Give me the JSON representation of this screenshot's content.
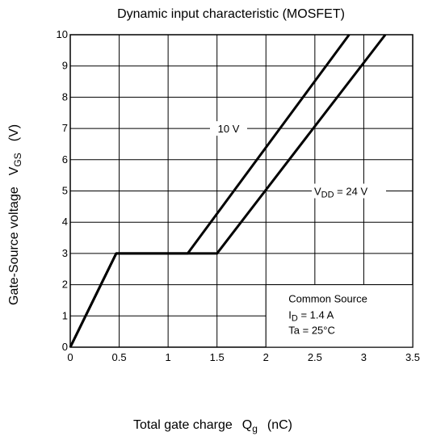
{
  "chart_data": {
    "type": "line",
    "title": "Dynamic input characteristic (MOSFET)",
    "xlabel": "Total gate charge",
    "xlabel_symbol": "Q",
    "xlabel_subscript": "g",
    "xlabel_unit": "(nC)",
    "ylabel": "Gate-Source voltage",
    "ylabel_symbol": "V",
    "ylabel_subscript": "GS",
    "ylabel_unit": "(V)",
    "xlim": [
      0,
      3.5
    ],
    "ylim": [
      0,
      10
    ],
    "x_ticks": [
      0,
      0.5,
      1,
      1.5,
      2,
      2.5,
      3,
      3.5
    ],
    "x_tick_labels": [
      "0",
      "0.5",
      "1",
      "1.5",
      "2",
      "2.5",
      "3",
      "3.5"
    ],
    "y_ticks": [
      0,
      1,
      2,
      3,
      4,
      5,
      6,
      7,
      8,
      9,
      10
    ],
    "y_tick_labels": [
      "0",
      "1",
      "2",
      "3",
      "4",
      "5",
      "6",
      "7",
      "8",
      "9",
      "10"
    ],
    "grid": true,
    "series": [
      {
        "name": "10 V",
        "x": [
          0,
          0.47,
          1.2,
          2.85
        ],
        "y": [
          0,
          3.0,
          3.0,
          10.0
        ]
      },
      {
        "name": "VDD = 24 V",
        "x": [
          0,
          0.47,
          1.5,
          3.22
        ],
        "y": [
          0,
          3.0,
          3.0,
          10.0
        ]
      }
    ],
    "annotations": {
      "label_10v": "10 V",
      "label_vdd_prefix": "V",
      "label_vdd_sub": "DD",
      "label_vdd_suffix": " = 24 V"
    },
    "conditions": {
      "title": "Common Source",
      "id_prefix": "I",
      "id_sub": "D",
      "id_value": " = 1.4 A",
      "ta": "Ta = 25°C"
    }
  }
}
